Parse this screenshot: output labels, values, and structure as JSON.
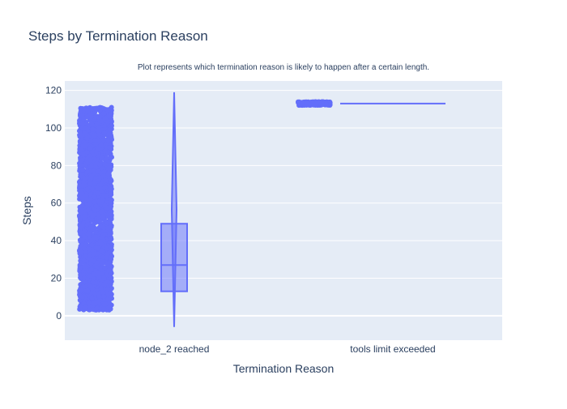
{
  "chart_data": {
    "type": "box",
    "title": "Steps by Termination Reason",
    "subtitle": "Plot represents which termination reason is likely to happen after a certain length.",
    "xlabel": "Termination Reason",
    "ylabel": "Steps",
    "categories": [
      "node_2 reached",
      "tools limit exceeded"
    ],
    "ylim": [
      -13,
      125
    ],
    "yticks": [
      0,
      20,
      40,
      60,
      80,
      100,
      120
    ],
    "grid": true,
    "colors": {
      "series": "#636efa",
      "plot_bg": "#e5ecf6",
      "grid": "#ffffff",
      "text": "#2a3f5f"
    },
    "series": [
      {
        "category": "node_2 reached",
        "points_range": [
          3,
          111
        ],
        "box": {
          "q1": 13,
          "median": 27,
          "q3": 49
        },
        "violin": {
          "min": -6,
          "max": 119
        }
      },
      {
        "category": "tools limit exceeded",
        "points_range": [
          112,
          114
        ],
        "box": {
          "q1": 113,
          "median": 113,
          "q3": 113
        },
        "violin": {
          "min": 113,
          "max": 113
        }
      }
    ]
  }
}
